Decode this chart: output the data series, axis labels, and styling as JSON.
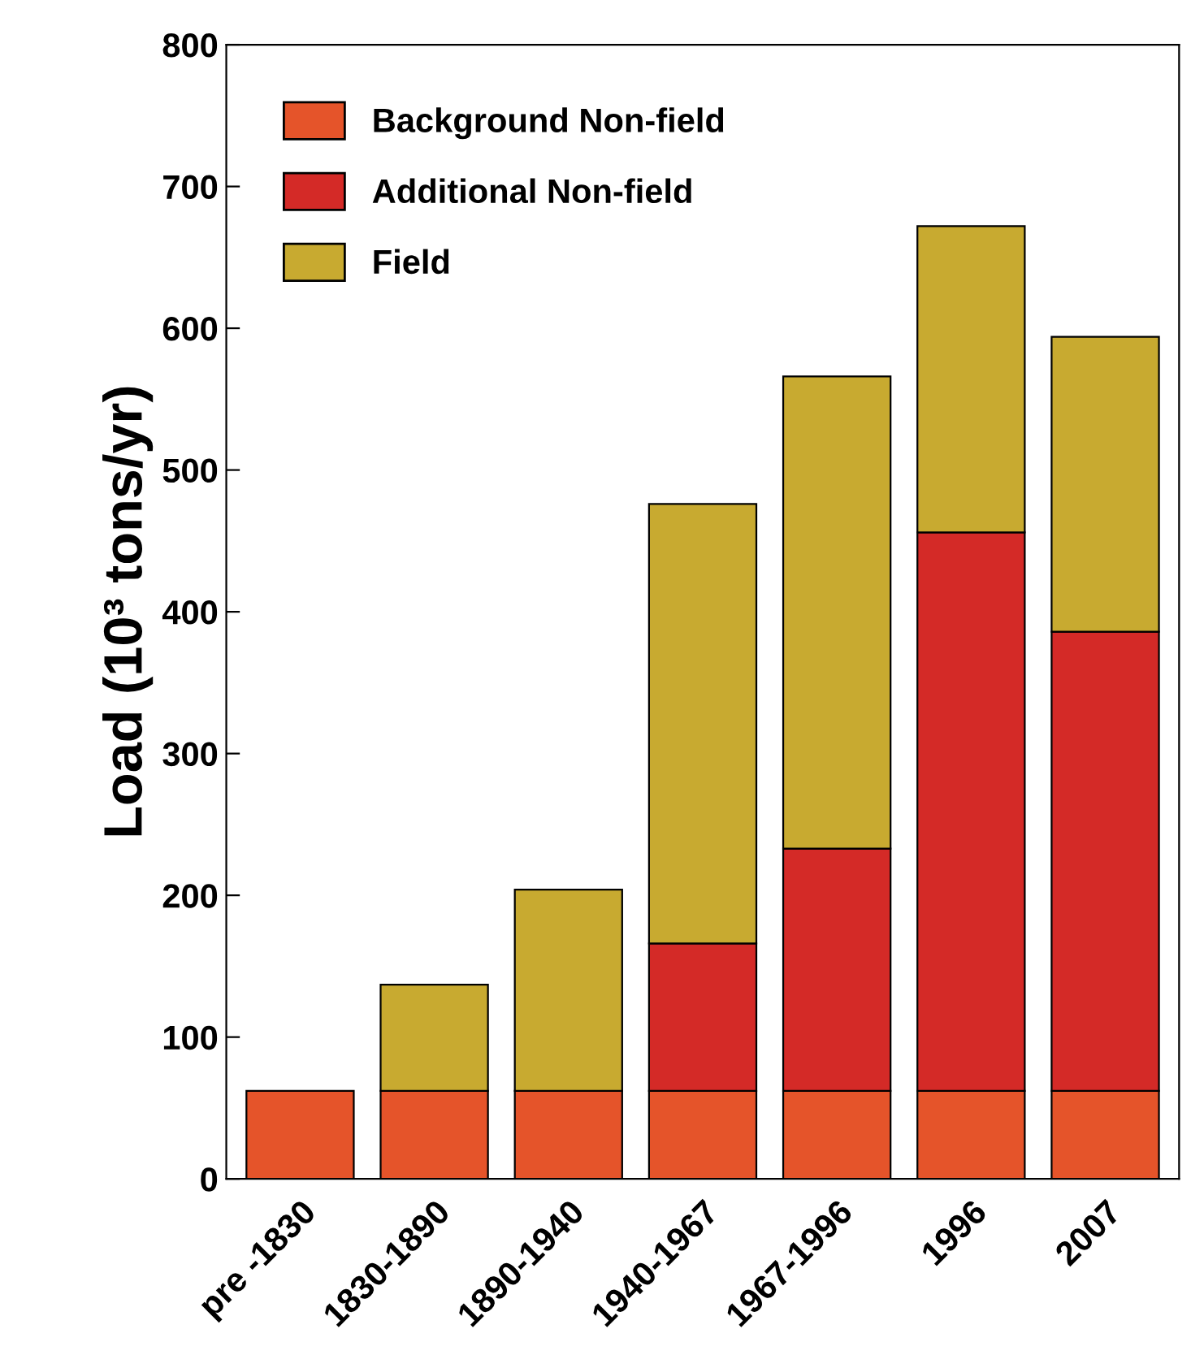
{
  "chart_data": {
    "type": "bar",
    "stacked": true,
    "ylabel": "Load (10³ tons/yr)",
    "categories": [
      "pre -1830",
      "1830-1890",
      "1890-1940",
      "1940-1967",
      "1967-1996",
      "1996",
      "2007"
    ],
    "series": [
      {
        "name": "Background Non-field",
        "color": "#e5542a",
        "values": [
          62,
          62,
          62,
          62,
          62,
          62,
          62
        ]
      },
      {
        "name": "Additional Non-field",
        "color": "#d42a27",
        "values": [
          null,
          null,
          null,
          104,
          171,
          394,
          324
        ]
      },
      {
        "name": "Field",
        "color": "#c8aa30",
        "values": [
          null,
          75,
          142,
          310,
          333,
          216,
          208
        ]
      }
    ],
    "ylim": [
      0,
      800
    ],
    "yticks": [
      0,
      100,
      200,
      300,
      400,
      500,
      600,
      700,
      800
    ],
    "grid": false,
    "legend": "top left"
  }
}
